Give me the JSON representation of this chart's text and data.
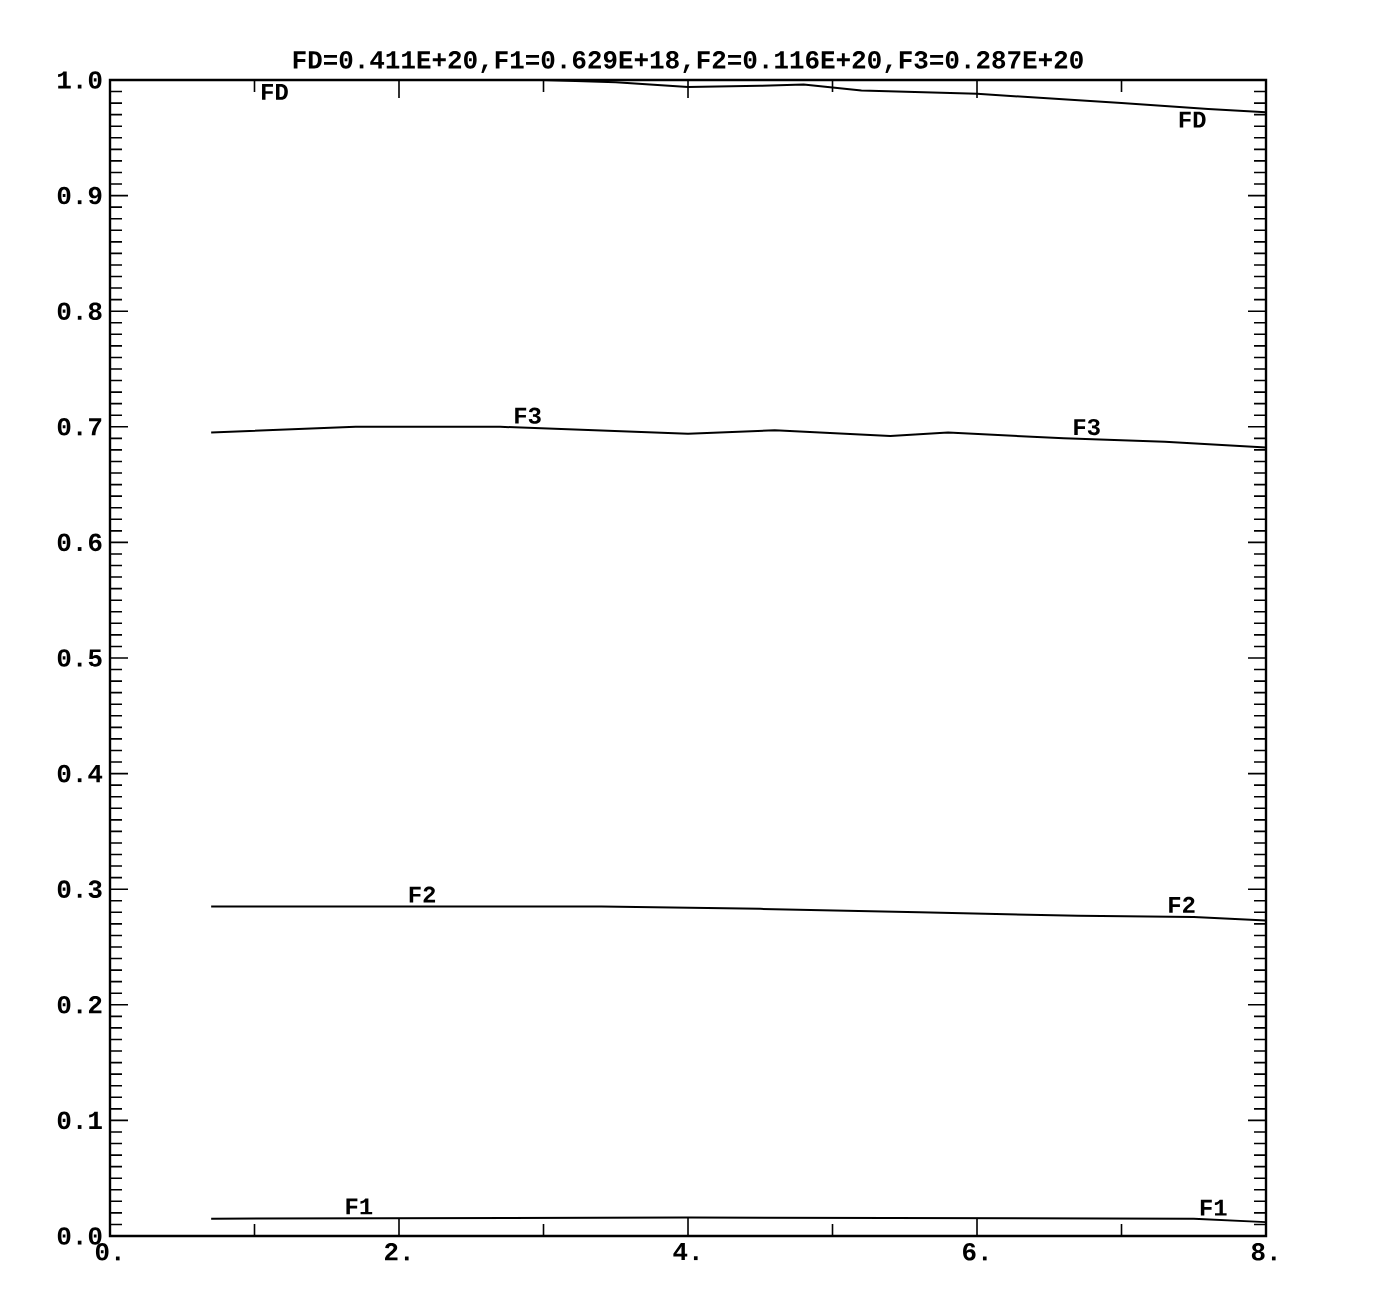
{
  "chart_data": {
    "type": "line",
    "title": "FD=0.411E+20,F1=0.629E+18,F2=0.116E+20,F3=0.287E+20",
    "xlim": [
      0,
      8
    ],
    "ylim": [
      0,
      1
    ],
    "xticks": [
      {
        "value": 0,
        "label": "0."
      },
      {
        "value": 2,
        "label": "2."
      },
      {
        "value": 4,
        "label": "4."
      },
      {
        "value": 6,
        "label": "6."
      },
      {
        "value": 8,
        "label": "8."
      }
    ],
    "yticks": [
      {
        "value": 0,
        "label": "0.0"
      },
      {
        "value": 0.1,
        "label": "0.1"
      },
      {
        "value": 0.2,
        "label": "0.2"
      },
      {
        "value": 0.3,
        "label": "0.3"
      },
      {
        "value": 0.4,
        "label": "0.4"
      },
      {
        "value": 0.5,
        "label": "0.5"
      },
      {
        "value": 0.6,
        "label": "0.6"
      },
      {
        "value": 0.7,
        "label": "0.7"
      },
      {
        "value": 0.8,
        "label": "0.8"
      },
      {
        "value": 0.9,
        "label": "0.9"
      },
      {
        "value": 1,
        "label": "1.0"
      }
    ],
    "marker": "none",
    "line_style": "solid",
    "grid": false,
    "legend": "right",
    "series": [
      {
        "name": "FD",
        "color": "#000000",
        "x": [
          0.7,
          3.0,
          3.5,
          4.0,
          4.5,
          4.8,
          5.2,
          6.0,
          7.0,
          7.6,
          8.0
        ],
        "values": [
          1.0,
          1.0,
          0.998,
          0.994,
          0.995,
          0.996,
          0.991,
          0.988,
          0.98,
          0.975,
          0.972
        ]
      },
      {
        "name": "F3",
        "color": "#000000",
        "x": [
          0.7,
          1.7,
          2.7,
          4.0,
          4.6,
          5.4,
          5.8,
          6.6,
          7.3,
          8.0
        ],
        "values": [
          0.695,
          0.7,
          0.7,
          0.694,
          0.697,
          0.692,
          0.695,
          0.69,
          0.687,
          0.682
        ]
      },
      {
        "name": "F2",
        "color": "#000000",
        "x": [
          0.7,
          2.0,
          3.4,
          4.5,
          5.6,
          6.7,
          7.5,
          8.0
        ],
        "values": [
          0.285,
          0.285,
          0.285,
          0.283,
          0.28,
          0.277,
          0.276,
          0.273
        ]
      },
      {
        "name": "F1",
        "color": "#000000",
        "x": [
          0.7,
          4.0,
          7.5,
          8.0
        ],
        "values": [
          0.015,
          0.016,
          0.015,
          0.012
        ]
      }
    ]
  }
}
